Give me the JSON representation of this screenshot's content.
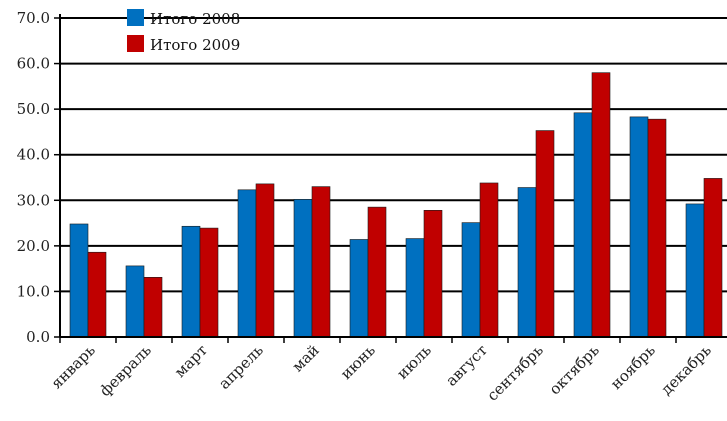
{
  "chart_data": {
    "type": "bar",
    "categories": [
      "январь",
      "февраль",
      "март",
      "апрель",
      "май",
      "июнь",
      "июль",
      "август",
      "сентябрь",
      "октябрь",
      "ноябрь",
      "декабрь"
    ],
    "series": [
      {
        "name": "Итого 2008",
        "color": "#0070c0",
        "values": [
          24.8,
          15.6,
          24.3,
          32.3,
          30.2,
          21.4,
          21.6,
          25.1,
          32.8,
          49.2,
          48.3,
          29.2
        ]
      },
      {
        "name": "Итого 2009",
        "color": "#c00000",
        "values": [
          18.6,
          13.1,
          23.9,
          33.6,
          33.0,
          28.5,
          27.8,
          33.8,
          45.3,
          58.0,
          47.8,
          34.8
        ]
      }
    ],
    "y_ticks": [
      "0.0",
      "10.0",
      "20.0",
      "30.0",
      "40.0",
      "50.0",
      "60.0",
      "70.0"
    ],
    "ylim": [
      0,
      70
    ],
    "grid": true,
    "legend_position": "top-left"
  }
}
